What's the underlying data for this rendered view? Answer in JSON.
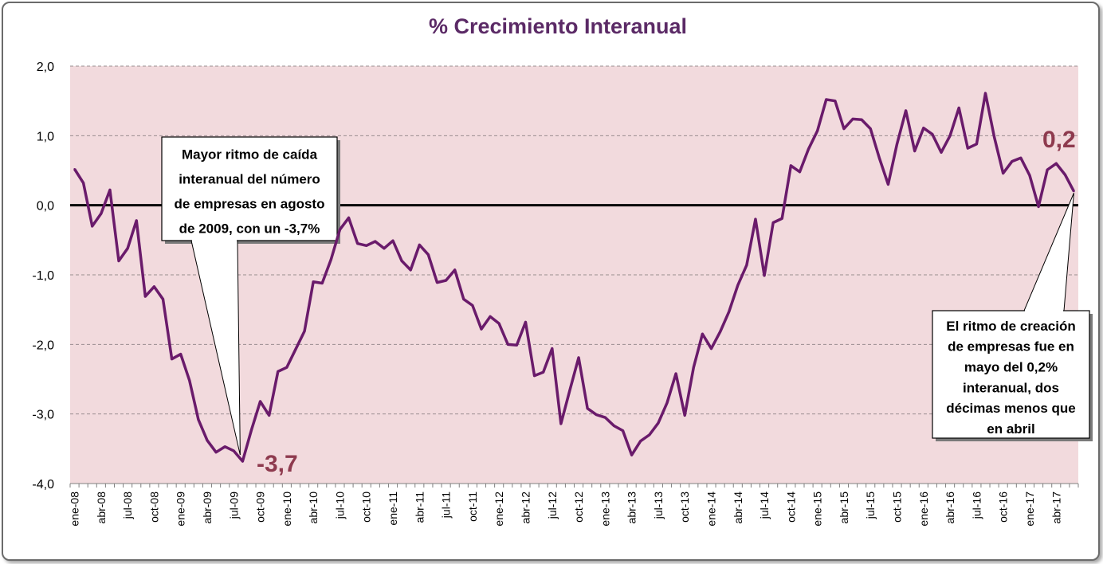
{
  "chart_data": {
    "type": "line",
    "title": "% Crecimiento Interanual",
    "xlabel": "",
    "ylabel": "",
    "ylim": [
      -4,
      2
    ],
    "yticks": [
      "2,0",
      "1,0",
      "0,0",
      "-1,0",
      "-2,0",
      "-3,0",
      "-4,0"
    ],
    "ytick_values": [
      2,
      1,
      0,
      -1,
      -2,
      -3,
      -4
    ],
    "xtick_labels": [
      "ene-08",
      "abr-08",
      "jul-08",
      "oct-08",
      "ene-09",
      "abr-09",
      "jul-09",
      "oct-09",
      "ene-10",
      "abr-10",
      "jul-10",
      "oct-10",
      "ene-11",
      "abr-11",
      "jul-11",
      "oct-11",
      "ene-12",
      "abr-12",
      "jul-12",
      "oct-12",
      "ene-13",
      "abr-13",
      "jul-13",
      "oct-13",
      "ene-14",
      "abr-14",
      "jul-14",
      "oct-14",
      "ene-15",
      "abr-15",
      "jul-15",
      "oct-15",
      "ene-16",
      "abr-16",
      "jul-16",
      "oct-16",
      "ene-17",
      "abr-17"
    ],
    "grid": true,
    "series": [
      {
        "name": "% Crecimiento Interanual",
        "color": "#6a1b6b",
        "start": "ene-08",
        "values": [
          0.52,
          0.32,
          -0.3,
          -0.12,
          0.22,
          -0.8,
          -0.62,
          -0.22,
          -1.31,
          -1.17,
          -1.35,
          -2.21,
          -2.14,
          -2.52,
          -3.08,
          -3.38,
          -3.55,
          -3.47,
          -3.53,
          -3.68,
          -3.23,
          -2.82,
          -3.02,
          -2.39,
          -2.33,
          -2.07,
          -1.81,
          -1.1,
          -1.12,
          -0.78,
          -0.35,
          -0.18,
          -0.55,
          -0.58,
          -0.52,
          -0.62,
          -0.51,
          -0.8,
          -0.93,
          -0.57,
          -0.71,
          -1.11,
          -1.08,
          -0.93,
          -1.35,
          -1.44,
          -1.78,
          -1.6,
          -1.7,
          -2.0,
          -2.01,
          -1.68,
          -2.45,
          -2.4,
          -2.06,
          -3.14,
          -2.66,
          -2.19,
          -2.92,
          -3.01,
          -3.05,
          -3.17,
          -3.24,
          -3.59,
          -3.39,
          -3.3,
          -3.13,
          -2.84,
          -2.42,
          -3.02,
          -2.33,
          -1.85,
          -2.06,
          -1.82,
          -1.53,
          -1.15,
          -0.86,
          -0.2,
          -1.01,
          -0.25,
          -0.19,
          0.57,
          0.48,
          0.81,
          1.07,
          1.52,
          1.5,
          1.1,
          1.24,
          1.23,
          1.1,
          0.68,
          0.3,
          0.88,
          1.36,
          0.78,
          1.11,
          1.02,
          0.76,
          1.0,
          1.4,
          0.82,
          0.88,
          1.61,
          0.98,
          0.46,
          0.63,
          0.68,
          0.43,
          -0.02,
          0.51,
          0.6,
          0.44,
          0.2
        ]
      }
    ],
    "annotations": {
      "min_label": "-3,7",
      "last_label": "0,2",
      "callout_left": [
        "Mayor ritmo de caída",
        "interanual del número",
        "de empresas en agosto",
        "de 2009,  con un -3,7%"
      ],
      "callout_right": [
        "El ritmo de creación",
        "de empresas fue en",
        "mayo del 0,2%",
        "interanual, dos",
        "décimas menos que",
        "en abril"
      ]
    },
    "colors": {
      "plot_background": "#f2dadd",
      "line": "#6a1b6b",
      "zero_line": "#000000",
      "title": "#5b2a66",
      "value_labels": "#8e3a4e"
    }
  }
}
